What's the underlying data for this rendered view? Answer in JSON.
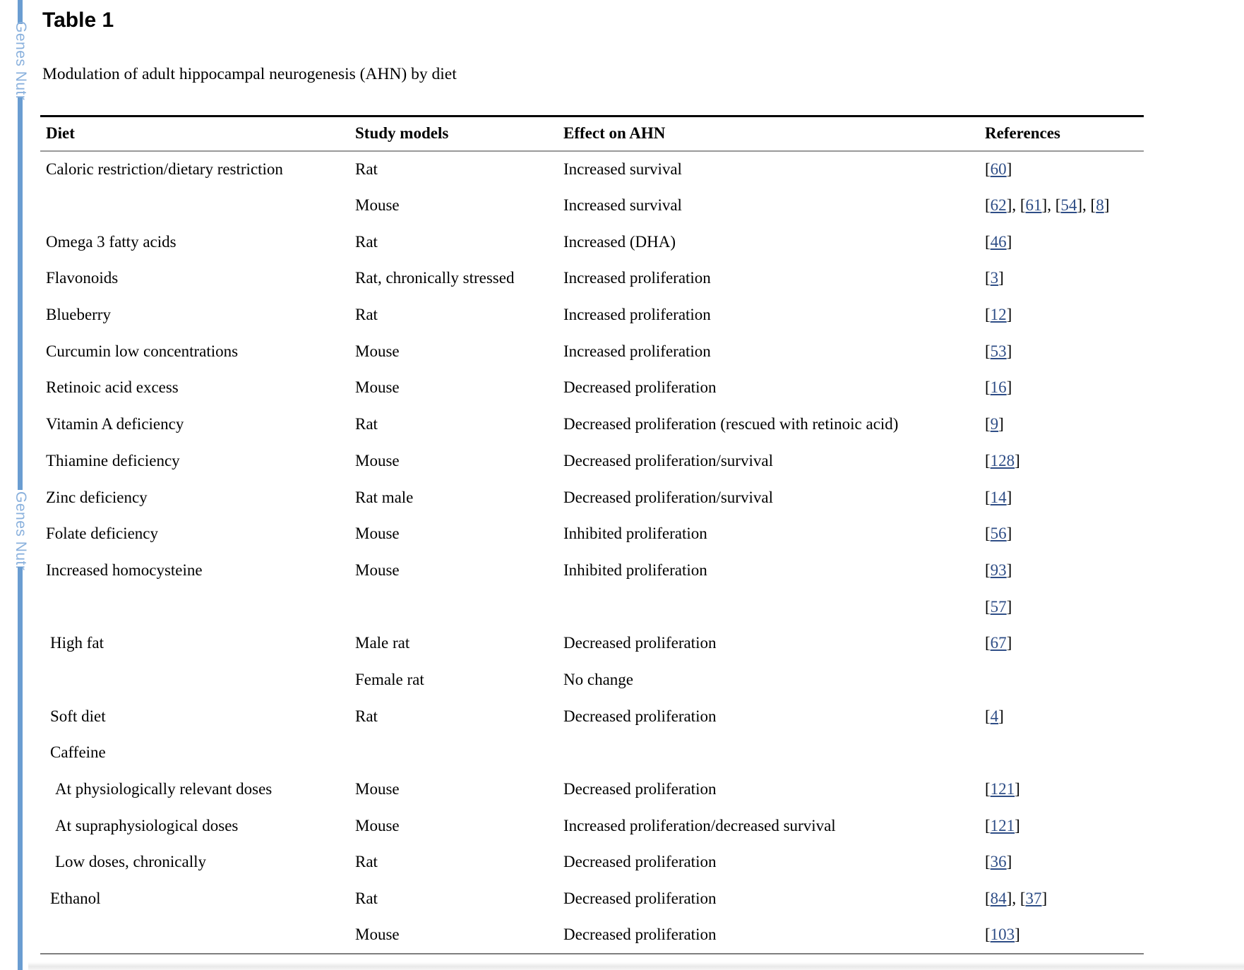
{
  "page": {
    "heading": "Table 1",
    "caption": "Modulation of adult hippocampal neurogenesis (AHN) by diet"
  },
  "sidebar": {
    "journal": "Genes Nutr",
    "line_color": "#6a9dd1",
    "text_color": "#8ab1dd"
  },
  "table": {
    "columns": [
      "Diet",
      "Study models",
      "Effect on AHN",
      "References"
    ],
    "link_color": "#2e4d86",
    "rows": [
      {
        "diet": "Caloric restriction/dietary restriction",
        "indent": 0,
        "model": "Rat",
        "effect": "Increased survival",
        "refs": [
          "60"
        ]
      },
      {
        "diet": "",
        "indent": 0,
        "model": "Mouse",
        "effect": "Increased survival",
        "refs": [
          "62",
          "61",
          "54",
          "8"
        ]
      },
      {
        "diet": "Omega 3 fatty acids",
        "indent": 0,
        "model": "Rat",
        "effect": "Increased (DHA)",
        "refs": [
          "46"
        ]
      },
      {
        "diet": "Flavonoids",
        "indent": 0,
        "model": "Rat, chronically stressed",
        "effect": "Increased proliferation",
        "refs": [
          "3"
        ]
      },
      {
        "diet": "Blueberry",
        "indent": 0,
        "model": "Rat",
        "effect": "Increased proliferation",
        "refs": [
          "12"
        ]
      },
      {
        "diet": "Curcumin low concentrations",
        "indent": 0,
        "model": "Mouse",
        "effect": "Increased proliferation",
        "refs": [
          "53"
        ]
      },
      {
        "diet": "Retinoic acid excess",
        "indent": 0,
        "model": "Mouse",
        "effect": "Decreased proliferation",
        "refs": [
          "16"
        ]
      },
      {
        "diet": "Vitamin A deficiency",
        "indent": 0,
        "model": "Rat",
        "effect": "Decreased proliferation (rescued with retinoic acid)",
        "refs": [
          "9"
        ]
      },
      {
        "diet": "Thiamine deficiency",
        "indent": 0,
        "model": "Mouse",
        "effect": "Decreased proliferation/survival",
        "refs": [
          "128"
        ]
      },
      {
        "diet": "Zinc deficiency",
        "indent": 0,
        "model": "Rat male",
        "effect": "Decreased proliferation/survival",
        "refs": [
          "14"
        ]
      },
      {
        "diet": "Folate deficiency",
        "indent": 0,
        "model": "Mouse",
        "effect": "Inhibited proliferation",
        "refs": [
          "56"
        ]
      },
      {
        "diet": "Increased homocysteine",
        "indent": 0,
        "model": "Mouse",
        "effect": "Inhibited proliferation",
        "refs": [
          "93"
        ]
      },
      {
        "diet": "",
        "indent": 0,
        "model": "",
        "effect": "",
        "refs": [
          "57"
        ]
      },
      {
        "diet": "High fat",
        "indent": 1,
        "model": "Male rat",
        "effect": "Decreased proliferation",
        "refs": [
          "67"
        ]
      },
      {
        "diet": "",
        "indent": 0,
        "model": "Female rat",
        "effect": "No change",
        "refs": []
      },
      {
        "diet": "Soft diet",
        "indent": 1,
        "model": "Rat",
        "effect": "Decreased proliferation",
        "refs": [
          "4"
        ]
      },
      {
        "diet": "Caffeine",
        "indent": 1,
        "model": "",
        "effect": "",
        "refs": []
      },
      {
        "diet": "At physiologically relevant doses",
        "indent": 2,
        "model": "Mouse",
        "effect": "Decreased proliferation",
        "refs": [
          "121"
        ]
      },
      {
        "diet": "At supraphysiological doses",
        "indent": 2,
        "model": "Mouse",
        "effect": "Increased proliferation/decreased survival",
        "refs": [
          "121"
        ]
      },
      {
        "diet": "Low doses, chronically",
        "indent": 2,
        "model": "Rat",
        "effect": "Decreased proliferation",
        "refs": [
          "36"
        ]
      },
      {
        "diet": "Ethanol",
        "indent": 1,
        "model": "Rat",
        "effect": "Decreased proliferation",
        "refs": [
          "84",
          "37"
        ]
      },
      {
        "diet": "",
        "indent": 0,
        "model": "Mouse",
        "effect": "Decreased proliferation",
        "refs": [
          "103"
        ]
      }
    ]
  }
}
